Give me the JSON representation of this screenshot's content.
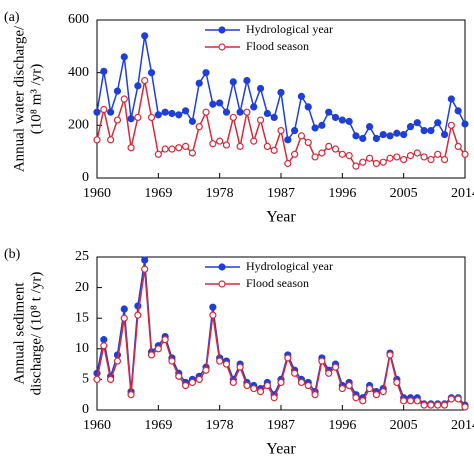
{
  "chart_data": [
    {
      "type": "line",
      "panel": "(a)",
      "ylabel": [
        "Annual water discharge/",
        "(10⁸ m³ /yr)"
      ],
      "xlabel": "Year",
      "x": [
        1960,
        1961,
        1962,
        1963,
        1964,
        1965,
        1966,
        1967,
        1968,
        1969,
        1970,
        1971,
        1972,
        1973,
        1974,
        1975,
        1976,
        1977,
        1978,
        1979,
        1980,
        1981,
        1982,
        1983,
        1984,
        1985,
        1986,
        1987,
        1988,
        1989,
        1990,
        1991,
        1992,
        1993,
        1994,
        1995,
        1996,
        1997,
        1998,
        1999,
        2000,
        2001,
        2002,
        2003,
        2004,
        2005,
        2006,
        2007,
        2008,
        2009,
        2010,
        2011,
        2012,
        2013,
        2014
      ],
      "xlim": [
        1960,
        2014
      ],
      "xticks": [
        1960,
        1969,
        1978,
        1987,
        1996,
        2005,
        2014
      ],
      "ylim": [
        0,
        600
      ],
      "yticks": [
        0,
        200,
        400,
        600
      ],
      "legend": "top",
      "series": [
        {
          "name": "Hydrological year",
          "color": "#1f3fd6",
          "marker": "filled",
          "values": [
            250,
            405,
            250,
            330,
            460,
            225,
            350,
            540,
            400,
            240,
            250,
            245,
            240,
            255,
            215,
            360,
            400,
            280,
            285,
            250,
            365,
            250,
            370,
            270,
            340,
            245,
            230,
            325,
            145,
            180,
            310,
            270,
            190,
            200,
            250,
            230,
            220,
            215,
            160,
            150,
            195,
            150,
            165,
            160,
            170,
            165,
            195,
            210,
            180,
            180,
            210,
            165,
            300,
            255,
            205
          ]
        },
        {
          "name": "Flood season",
          "color": "#d42a3a",
          "marker": "open",
          "values": [
            145,
            260,
            145,
            220,
            300,
            115,
            230,
            370,
            230,
            90,
            110,
            110,
            115,
            120,
            95,
            195,
            250,
            130,
            140,
            125,
            230,
            120,
            250,
            140,
            220,
            120,
            105,
            180,
            55,
            90,
            160,
            135,
            80,
            95,
            120,
            110,
            90,
            85,
            45,
            60,
            75,
            55,
            60,
            75,
            80,
            70,
            85,
            95,
            80,
            70,
            90,
            70,
            200,
            120,
            90
          ]
        }
      ]
    },
    {
      "type": "line",
      "panel": "(b)",
      "ylabel": [
        "Annual sediment",
        "discharge/ (10⁸ t /yr)"
      ],
      "xlabel": "Year",
      "x": [
        1960,
        1961,
        1962,
        1963,
        1964,
        1965,
        1966,
        1967,
        1968,
        1969,
        1970,
        1971,
        1972,
        1973,
        1974,
        1975,
        1976,
        1977,
        1978,
        1979,
        1980,
        1981,
        1982,
        1983,
        1984,
        1985,
        1986,
        1987,
        1988,
        1989,
        1990,
        1991,
        1992,
        1993,
        1994,
        1995,
        1996,
        1997,
        1998,
        1999,
        2000,
        2001,
        2002,
        2003,
        2004,
        2005,
        2006,
        2007,
        2008,
        2009,
        2010,
        2011,
        2012,
        2013,
        2014
      ],
      "xlim": [
        1960,
        2014
      ],
      "xticks": [
        1960,
        1969,
        1978,
        1987,
        1996,
        2005,
        2014
      ],
      "ylim": [
        0,
        25
      ],
      "yticks": [
        0,
        5,
        10,
        15,
        20,
        25
      ],
      "legend": "top",
      "series": [
        {
          "name": "Hydrological year",
          "color": "#1f3fd6",
          "marker": "filled",
          "values": [
            6,
            11.5,
            5.5,
            9,
            16.5,
            3,
            17,
            24.5,
            9.5,
            10.5,
            12,
            8.5,
            6,
            4.5,
            5,
            5.5,
            7,
            16.8,
            8.5,
            8,
            5,
            7.5,
            4.5,
            4,
            3.5,
            4.5,
            2.5,
            5,
            9,
            6.5,
            5,
            4.5,
            3,
            8.5,
            6.5,
            7.5,
            4,
            4.5,
            2.5,
            2,
            4,
            3,
            3.5,
            9.3,
            5,
            2,
            2,
            2,
            1,
            1,
            1,
            1,
            2,
            2,
            0.8
          ]
        },
        {
          "name": "Flood season",
          "color": "#d42a3a",
          "marker": "open",
          "values": [
            5,
            10.5,
            5,
            8,
            15,
            2.5,
            15.5,
            23,
            9,
            10,
            11.5,
            8,
            5.5,
            4,
            4.5,
            5,
            6.5,
            15.5,
            8,
            7.5,
            4.5,
            7,
            4,
            3.5,
            3,
            4,
            2,
            4.5,
            8.5,
            6,
            4.5,
            4,
            2.5,
            8,
            6,
            7,
            3.5,
            4,
            2,
            1.5,
            3.5,
            2.5,
            3,
            9,
            4.5,
            1.5,
            1.5,
            1.5,
            0.8,
            0.8,
            0.8,
            0.8,
            1.8,
            1.8,
            0.5
          ]
        }
      ]
    }
  ]
}
